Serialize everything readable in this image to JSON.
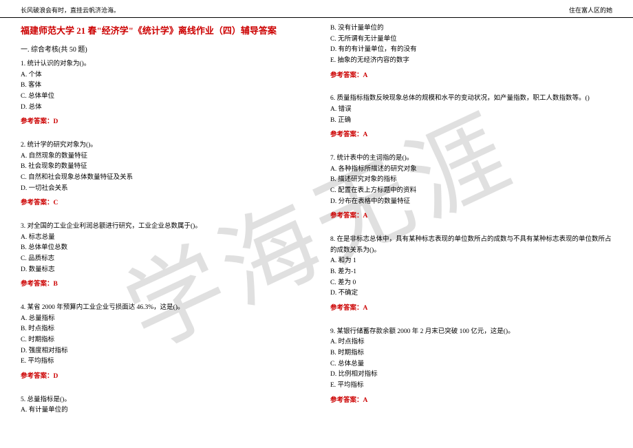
{
  "header": {
    "left": "长风破浪会有时，直挂云帆济沧海。",
    "right": "住在富人区的她"
  },
  "watermark": "学海无涯",
  "title": "福建师范大学 21 春\"经济学\"《统计学》离线作业（四）辅导答案",
  "section_header": "一. 综合考核(共 50 题)",
  "answer_label": "参考答案：",
  "left_questions": [
    {
      "num": "1.",
      "stem": "统计认识的对象为()。",
      "options": [
        "A. 个体",
        "B. 客体",
        "C. 总体单位",
        "D. 总体"
      ],
      "answer": "D"
    },
    {
      "num": "2.",
      "stem": "统计学的研究对象为()。",
      "options": [
        "A. 自然现象的数量特征",
        "B. 社会现象的数量特征",
        "C. 自然和社会现象总体数量特征及关系",
        "D. 一切社会关系"
      ],
      "answer": "C"
    },
    {
      "num": "3.",
      "stem": "对全国的工业企业利润总额进行研究，工业企业总数属于()。",
      "options": [
        "A. 标志总量",
        "B. 总体单位总数",
        "C. 品质标志",
        "D. 数量标志"
      ],
      "answer": "B"
    },
    {
      "num": "4.",
      "stem": "某省 2000 年预算内工业企业亏损面达 46.3%，这是()。",
      "options": [
        "A. 总量指标",
        "B. 时点指标",
        "C. 时期指标",
        "D. 强度相对指标",
        "E. 平均指标"
      ],
      "answer": "D"
    },
    {
      "num": "5.",
      "stem": "总量指标是()。",
      "options": [
        "A. 有计量单位的"
      ],
      "answer": null
    }
  ],
  "right_top_options": [
    "B. 没有计量单位的",
    "C. 无所谓有无计量单位",
    "D. 有的有计量单位，有的没有",
    "E. 抽象的无经济内容的数字"
  ],
  "right_top_answer": "A",
  "right_questions": [
    {
      "num": "6.",
      "stem": "质量指标指数反映现象总体的规模和水平的变动状况，如产量指数，职工人数指数等。()",
      "options": [
        "A. 错误",
        "B. 正确"
      ],
      "answer": "A"
    },
    {
      "num": "7.",
      "stem": "统计表中的主词指的是()。",
      "options": [
        "A. 各种指标所描述的研究对象",
        "B. 描述研究对象的指标",
        "C. 配置在表上方标题中的资料",
        "D. 分布在表格中的数量特征"
      ],
      "answer": "A"
    },
    {
      "num": "8.",
      "stem": "在是非标志总体中，具有某种标志表现的单位数所占的成数与不具有某种标志表现的单位数所占的成数关系为()。",
      "options": [
        "A. 和为 1",
        "B. 差为-1",
        "C. 差为 0",
        "D. 不确定"
      ],
      "answer": "A"
    },
    {
      "num": "9.",
      "stem": "某银行储蓄存款余额 2000 年 2 月末已突破 100 亿元，这是()。",
      "options": [
        "A. 时点指标",
        "B. 时期指标",
        "C. 总体总量",
        "D. 比例相对指标",
        "E. 平均指标"
      ],
      "answer": "A"
    }
  ]
}
